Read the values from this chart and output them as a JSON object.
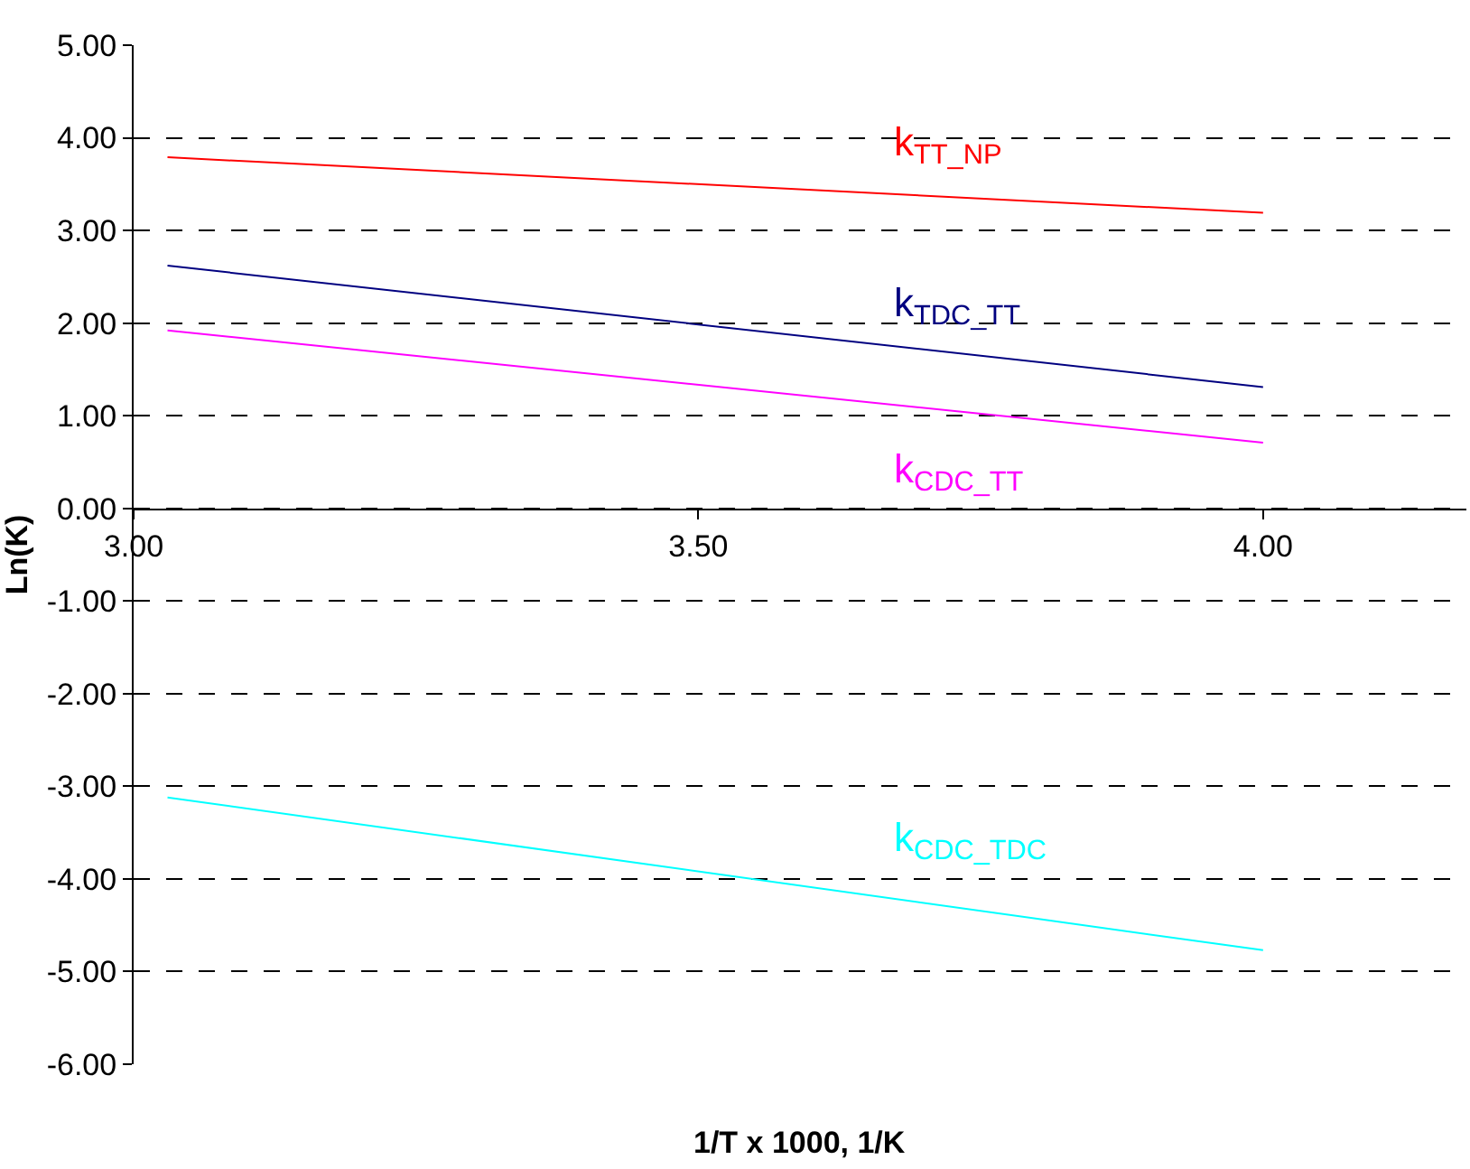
{
  "chart_data": {
    "type": "line",
    "xlabel": "1/T x 1000, 1/K",
    "ylabel": "Ln(K)",
    "x": [
      3.03,
      4.0
    ],
    "series": [
      {
        "name": "k$_{TT_NP}$",
        "color": "#ff0000",
        "values": [
          3.79,
          3.19
        ]
      },
      {
        "name": "k$_{TDC_TT}$",
        "color": "#000080",
        "values": [
          2.62,
          1.31
        ]
      },
      {
        "name": "k$_{CDC_TT}$",
        "color": "#ff00ff",
        "values": [
          1.92,
          0.71
        ]
      },
      {
        "name": "k$_{CDC_TDC}$",
        "color": "#00ffff",
        "values": [
          -3.12,
          -4.77
        ]
      }
    ],
    "xlim": [
      3.0,
      4.18
    ],
    "xticks": [
      {
        "value": 3.0,
        "label": "3.00"
      },
      {
        "value": 3.5,
        "label": "3.50"
      },
      {
        "value": 4.0,
        "label": "4.00"
      }
    ],
    "ylim": [
      -6.0,
      5.0
    ],
    "yticks": [
      {
        "value": 5,
        "label": "5.00"
      },
      {
        "value": 4,
        "label": "4.00"
      },
      {
        "value": 3,
        "label": "3.00"
      },
      {
        "value": 2,
        "label": "2.00"
      },
      {
        "value": 1,
        "label": "1.00"
      },
      {
        "value": 0,
        "label": "0.00"
      },
      {
        "value": -1,
        "label": "-1.00"
      },
      {
        "value": -2,
        "label": "-2.00"
      },
      {
        "value": -3,
        "label": "-3.00"
      },
      {
        "value": -4,
        "label": "-4.00"
      },
      {
        "value": -5,
        "label": "-5.00"
      },
      {
        "value": -6,
        "label": "-6.00"
      }
    ],
    "grid": "y",
    "legend": false,
    "marker": "none",
    "line_style": "solid"
  }
}
